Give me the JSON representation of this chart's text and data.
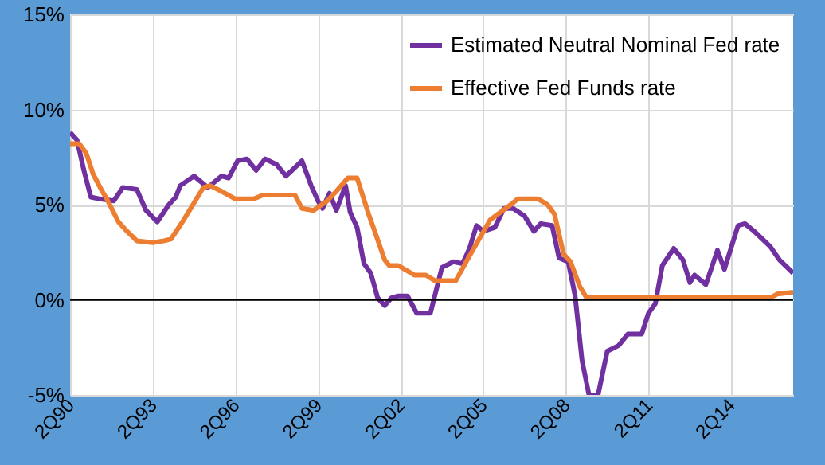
{
  "chart_data": {
    "type": "line",
    "xlim": [
      "1990-04",
      "2016-07"
    ],
    "ylim": [
      -5,
      15
    ],
    "xticks": [
      {
        "value": "1990-04",
        "label": "2Q90"
      },
      {
        "value": "1993-04",
        "label": "2Q93"
      },
      {
        "value": "1996-04",
        "label": "2Q96"
      },
      {
        "value": "1999-04",
        "label": "2Q99"
      },
      {
        "value": "2002-04",
        "label": "2Q02"
      },
      {
        "value": "2005-04",
        "label": "2Q05"
      },
      {
        "value": "2008-04",
        "label": "2Q08"
      },
      {
        "value": "2011-04",
        "label": "2Q11"
      },
      {
        "value": "2014-04",
        "label": "2Q14"
      }
    ],
    "yticks": [
      {
        "value": -5,
        "label": "-5%"
      },
      {
        "value": 0,
        "label": "0%"
      },
      {
        "value": 5,
        "label": "5%"
      },
      {
        "value": 10,
        "label": "10%"
      },
      {
        "value": 15,
        "label": "15%"
      }
    ],
    "grid": true,
    "legend": "top right",
    "ref_lines": [
      {
        "axis": "y",
        "value": 0,
        "color": "#000000"
      }
    ],
    "series": [
      {
        "name": "Estimated Neutral Nominal Fed rate",
        "color": "#7030a0",
        "x": [
          "1990-04",
          "1990-07",
          "1990-10",
          "1991-01",
          "1991-05",
          "1991-11",
          "1992-03",
          "1992-09",
          "1993-01",
          "1993-06",
          "1993-11",
          "1994-02",
          "1994-04",
          "1994-10",
          "1995-04",
          "1995-10",
          "1996-01",
          "1996-05",
          "1996-09",
          "1997-01",
          "1997-05",
          "1997-10",
          "1998-02",
          "1998-09",
          "1999-01",
          "1999-04",
          "1999-06",
          "1999-09",
          "1999-12",
          "2000-04",
          "2000-06",
          "2000-09",
          "2000-12",
          "2001-03",
          "2001-06",
          "2001-09",
          "2001-12",
          "2002-03",
          "2002-07",
          "2002-11",
          "2003-05",
          "2003-10",
          "2004-03",
          "2004-07",
          "2004-10",
          "2005-01",
          "2005-04",
          "2005-09",
          "2006-01",
          "2006-05",
          "2006-10",
          "2007-02",
          "2007-05",
          "2007-10",
          "2008-01",
          "2008-05",
          "2008-08",
          "2008-11",
          "2009-02",
          "2009-06",
          "2009-10",
          "2010-03",
          "2010-07",
          "2011-01",
          "2011-04",
          "2011-07",
          "2011-10",
          "2012-03",
          "2012-07",
          "2012-10",
          "2012-12",
          "2013-05",
          "2013-10",
          "2014-01",
          "2014-07",
          "2014-10",
          "2015-02",
          "2015-09",
          "2016-01",
          "2016-07"
        ],
        "values": [
          8.8,
          8.4,
          6.8,
          5.4,
          5.3,
          5.2,
          5.9,
          5.8,
          4.7,
          4.1,
          5.0,
          5.4,
          6.0,
          6.5,
          5.9,
          6.5,
          6.4,
          7.3,
          7.4,
          6.8,
          7.4,
          7.1,
          6.5,
          7.3,
          6.0,
          5.2,
          4.8,
          5.6,
          4.7,
          6.0,
          4.6,
          3.8,
          1.9,
          1.4,
          0.1,
          -0.3,
          0.1,
          0.2,
          0.2,
          -0.7,
          -0.7,
          1.7,
          2.0,
          1.9,
          2.7,
          3.9,
          3.6,
          3.8,
          4.8,
          4.8,
          4.4,
          3.6,
          4.0,
          3.9,
          2.2,
          2.0,
          0.2,
          -3.2,
          -5.0,
          -5.0,
          -2.7,
          -2.4,
          -1.8,
          -1.8,
          -0.7,
          -0.2,
          1.8,
          2.7,
          2.1,
          0.9,
          1.3,
          0.8,
          2.6,
          1.6,
          3.9,
          4.0,
          3.6,
          2.8,
          2.1,
          1.4
        ]
      },
      {
        "name": "Effective Fed Funds rate",
        "color": "#ed7d31",
        "x": [
          "1990-04",
          "1990-08",
          "1990-11",
          "1991-02",
          "1991-06",
          "1991-08",
          "1992-01",
          "1992-04",
          "1992-09",
          "1993-04",
          "1993-09",
          "1993-12",
          "1994-05",
          "1994-09",
          "1995-02",
          "1995-05",
          "1995-10",
          "1996-04",
          "1996-12",
          "1997-04",
          "1998-06",
          "1998-09",
          "1999-02",
          "1999-08",
          "1999-12",
          "2000-05",
          "2000-09",
          "2001-02",
          "2001-05",
          "2001-09",
          "2001-11",
          "2002-03",
          "2002-10",
          "2003-03",
          "2003-07",
          "2004-04",
          "2004-09",
          "2005-07",
          "2006-04",
          "2006-07",
          "2007-04",
          "2007-08",
          "2007-11",
          "2008-03",
          "2008-06",
          "2008-10",
          "2009-01",
          "2009-11",
          "2011-04",
          "2011-10",
          "2012-05",
          "2013-03",
          "2015-09",
          "2015-12",
          "2016-07"
        ],
        "values": [
          8.2,
          8.2,
          7.7,
          6.6,
          5.7,
          5.3,
          4.1,
          3.7,
          3.1,
          3.0,
          3.1,
          3.2,
          4.1,
          4.9,
          5.9,
          6.0,
          5.7,
          5.3,
          5.3,
          5.5,
          5.5,
          4.8,
          4.7,
          5.2,
          5.7,
          6.4,
          6.4,
          4.5,
          3.5,
          2.1,
          1.8,
          1.8,
          1.3,
          1.3,
          1.0,
          1.0,
          2.1,
          4.2,
          5.0,
          5.3,
          5.3,
          5.0,
          4.5,
          2.4,
          2.0,
          0.7,
          0.1,
          0.1,
          0.1,
          0.1,
          0.1,
          0.1,
          0.1,
          0.3,
          0.4
        ]
      }
    ]
  }
}
